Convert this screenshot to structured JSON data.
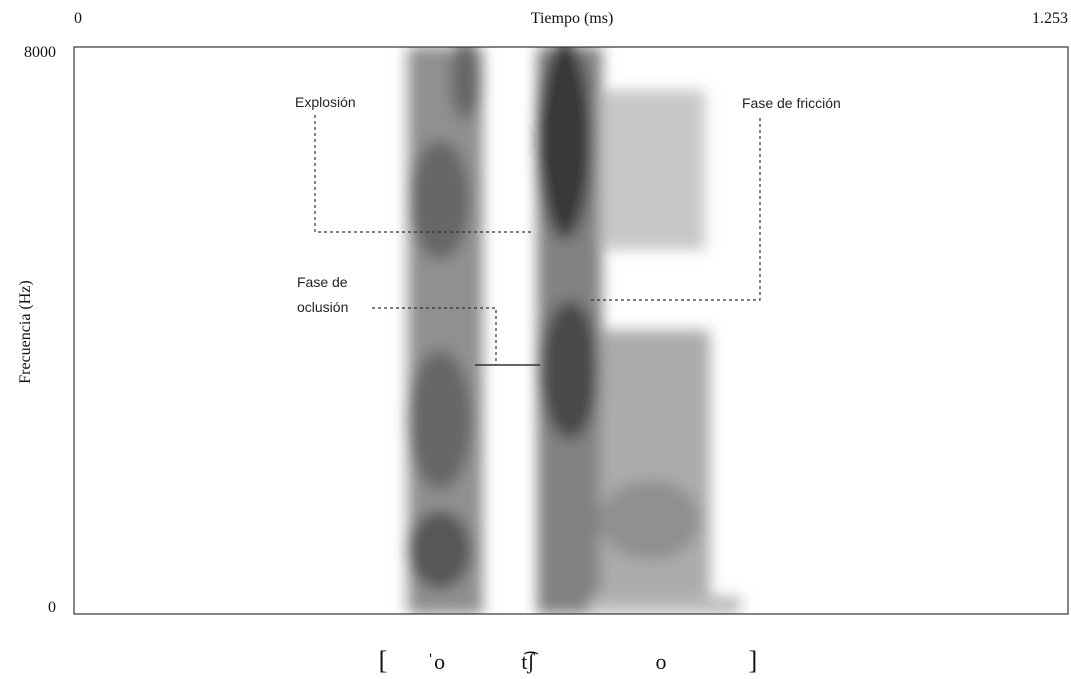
{
  "axes": {
    "x_start": "0",
    "x_label": "Tiempo (ms)",
    "x_end": "1.253",
    "y_top": "8000",
    "y_bottom": "0",
    "y_label": "Frecuencia (Hz)"
  },
  "annotations": {
    "explosion": "Explosión",
    "friction": "Fase de fricción",
    "occlusion": [
      "Fase de",
      "oclusión"
    ]
  },
  "transcription": [
    "[",
    "ˈo",
    "t͡ʃ",
    "o",
    "]"
  ]
}
